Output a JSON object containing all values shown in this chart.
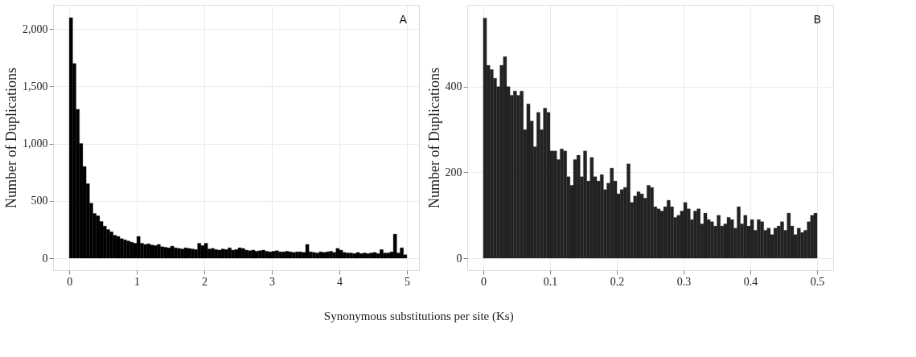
{
  "chart_data": [
    {
      "type": "histogram",
      "ylabel": "Number of Duplications",
      "xlabel": "Synonymous substitutions per site (Ks)",
      "annotations": [
        "A"
      ],
      "color": "#000000",
      "bins": [
        0,
        0.05,
        0.1,
        0.15,
        0.2,
        0.25,
        0.3,
        0.35,
        0.4,
        0.45,
        0.5,
        0.55,
        0.6,
        0.65,
        0.7,
        0.75,
        0.8,
        0.85,
        0.9,
        0.95,
        1,
        1.05,
        1.1,
        1.15,
        1.2,
        1.25,
        1.3,
        1.35,
        1.4,
        1.45,
        1.5,
        1.55,
        1.6,
        1.65,
        1.7,
        1.75,
        1.8,
        1.85,
        1.9,
        1.95,
        2,
        2.05,
        2.1,
        2.15,
        2.2,
        2.25,
        2.3,
        2.35,
        2.4,
        2.45,
        2.5,
        2.55,
        2.6,
        2.65,
        2.7,
        2.75,
        2.8,
        2.85,
        2.9,
        2.95,
        3,
        3.05,
        3.1,
        3.15,
        3.2,
        3.25,
        3.3,
        3.35,
        3.4,
        3.45,
        3.5,
        3.55,
        3.6,
        3.65,
        3.7,
        3.75,
        3.8,
        3.85,
        3.9,
        3.95,
        4,
        4.05,
        4.1,
        4.15,
        4.2,
        4.25,
        4.3,
        4.35,
        4.4,
        4.45,
        4.5,
        4.55,
        4.6,
        4.65,
        4.7,
        4.75,
        4.8,
        4.85,
        4.9,
        4.95,
        5
      ],
      "values": [
        2100,
        1700,
        1300,
        1000,
        800,
        650,
        480,
        390,
        370,
        320,
        280,
        250,
        230,
        200,
        190,
        170,
        160,
        150,
        140,
        130,
        190,
        130,
        120,
        125,
        115,
        110,
        120,
        100,
        95,
        90,
        105,
        90,
        85,
        80,
        90,
        85,
        80,
        75,
        130,
        110,
        130,
        80,
        85,
        75,
        70,
        80,
        75,
        90,
        70,
        75,
        90,
        85,
        70,
        65,
        70,
        60,
        65,
        70,
        60,
        55,
        60,
        65,
        55,
        55,
        60,
        55,
        50,
        55,
        55,
        50,
        120,
        55,
        50,
        45,
        55,
        50,
        55,
        60,
        50,
        85,
        70,
        50,
        45,
        45,
        40,
        50,
        40,
        45,
        40,
        45,
        50,
        40,
        75,
        45,
        45,
        55,
        210,
        45,
        90,
        30
      ],
      "xlim": [
        -0.24,
        5.18
      ],
      "xticks": [
        0,
        1,
        2,
        3,
        4,
        5
      ],
      "ylim": [
        -105,
        2212
      ],
      "yticks": [
        0,
        500,
        {
          "value": 1000,
          "label": "1,000"
        },
        {
          "value": 1500,
          "label": "1,500"
        },
        {
          "value": 2000,
          "label": "2,000"
        }
      ],
      "grid": true
    },
    {
      "type": "histogram",
      "ylabel": "Number of Duplications",
      "annotations": [
        "B"
      ],
      "color": "#222222",
      "bins": [
        0,
        0.005,
        0.01,
        0.015,
        0.02,
        0.025,
        0.03,
        0.035,
        0.04,
        0.045,
        0.05,
        0.055,
        0.06,
        0.065,
        0.07,
        0.075,
        0.08,
        0.085,
        0.09,
        0.095,
        0.1,
        0.105,
        0.11,
        0.115,
        0.12,
        0.125,
        0.13,
        0.135,
        0.14,
        0.145,
        0.15,
        0.155,
        0.16,
        0.165,
        0.17,
        0.175,
        0.18,
        0.185,
        0.19,
        0.195,
        0.2,
        0.205,
        0.21,
        0.215,
        0.22,
        0.225,
        0.23,
        0.235,
        0.24,
        0.245,
        0.25,
        0.255,
        0.26,
        0.265,
        0.27,
        0.275,
        0.28,
        0.285,
        0.29,
        0.295,
        0.3,
        0.305,
        0.31,
        0.315,
        0.32,
        0.325,
        0.33,
        0.335,
        0.34,
        0.345,
        0.35,
        0.355,
        0.36,
        0.365,
        0.37,
        0.375,
        0.38,
        0.385,
        0.39,
        0.395,
        0.4,
        0.405,
        0.41,
        0.415,
        0.42,
        0.425,
        0.43,
        0.435,
        0.44,
        0.445,
        0.45,
        0.455,
        0.46,
        0.465,
        0.47,
        0.475,
        0.48,
        0.485,
        0.49,
        0.495,
        0.5
      ],
      "values": [
        560,
        450,
        440,
        420,
        400,
        450,
        470,
        400,
        380,
        390,
        380,
        390,
        300,
        360,
        320,
        260,
        340,
        300,
        350,
        340,
        250,
        250,
        230,
        255,
        250,
        190,
        170,
        230,
        240,
        190,
        250,
        180,
        235,
        190,
        180,
        195,
        160,
        175,
        210,
        180,
        150,
        160,
        165,
        220,
        130,
        145,
        155,
        150,
        140,
        170,
        165,
        120,
        115,
        110,
        120,
        135,
        120,
        95,
        100,
        110,
        130,
        115,
        90,
        110,
        115,
        80,
        105,
        90,
        85,
        75,
        100,
        75,
        80,
        95,
        90,
        70,
        120,
        80,
        100,
        75,
        90,
        65,
        90,
        85,
        65,
        70,
        55,
        70,
        75,
        85,
        65,
        105,
        75,
        55,
        70,
        60,
        65,
        85,
        100,
        105
      ],
      "xlim": [
        -0.024,
        0.524
      ],
      "xticks": [
        0,
        0.1,
        0.2,
        0.3,
        0.4,
        0.5
      ],
      "ylim": [
        -28,
        591
      ],
      "yticks": [
        0,
        200,
        400
      ],
      "grid": true
    }
  ]
}
